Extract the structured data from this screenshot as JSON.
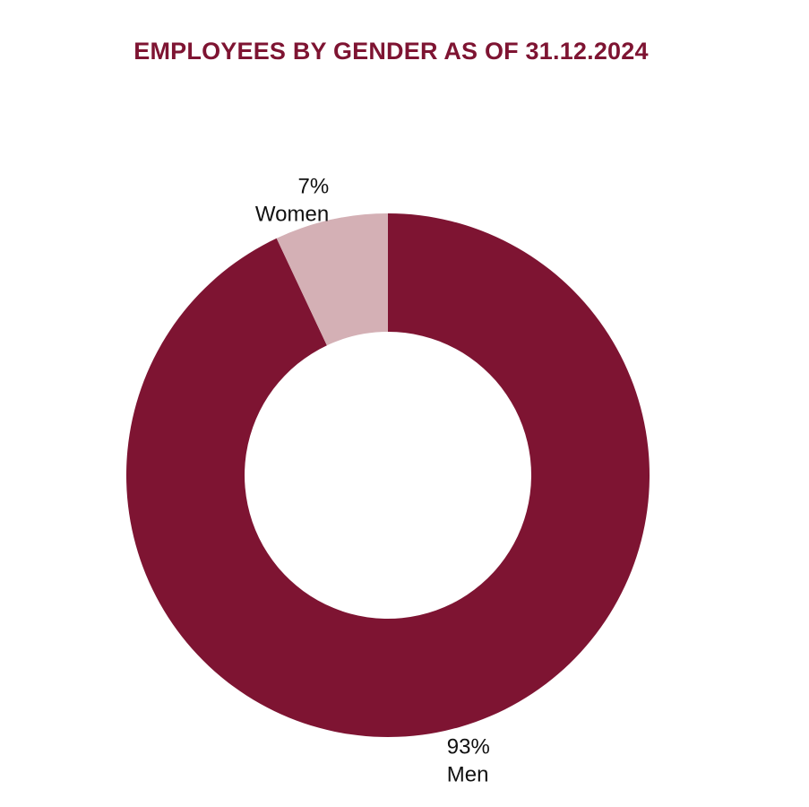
{
  "chart_data": {
    "type": "pie",
    "variant": "donut",
    "title": "EMPLOYEES BY GENDER AS OF 31.12.2024",
    "slices": [
      {
        "name": "Men",
        "value": 93,
        "value_label": "93%",
        "color": "#7e1432"
      },
      {
        "name": "Women",
        "value": 7,
        "value_label": "7%",
        "color": "#d4b0b5"
      }
    ],
    "start": "12 o'clock",
    "direction": "clockwise",
    "legend": "none",
    "title_color": "#7e1432"
  }
}
